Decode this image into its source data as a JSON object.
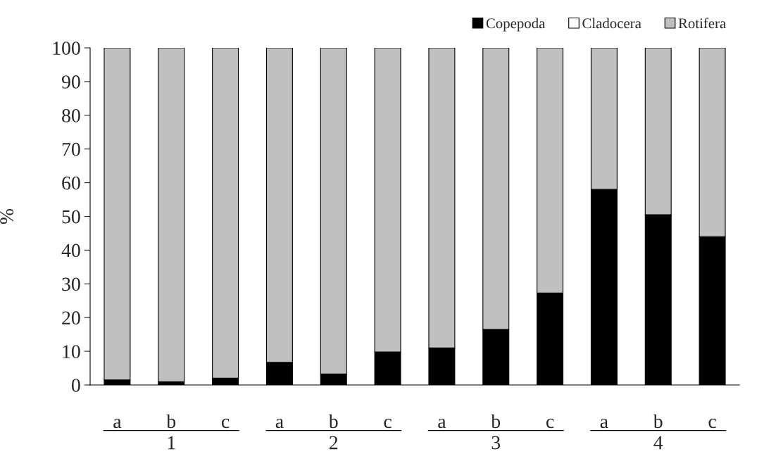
{
  "chart_data": {
    "type": "bar",
    "stacked": true,
    "ylabel": "%",
    "categories": [
      "a",
      "b",
      "c",
      "a",
      "b",
      "c",
      "a",
      "b",
      "c",
      "a",
      "b",
      "c"
    ],
    "series": [
      {
        "name": "Copepoda",
        "color": "#000000",
        "values": [
          1.5,
          1,
          2,
          6.7,
          3.3,
          9.8,
          11,
          16.5,
          27.3,
          58,
          50.5,
          44
        ]
      },
      {
        "name": "Cladocera",
        "color": "#ffffff",
        "values": [
          0,
          0,
          0,
          0,
          0,
          0,
          0,
          0,
          0,
          0,
          0,
          0
        ]
      },
      {
        "name": "Rotifera",
        "color": "#c0c0c0",
        "values": [
          98.5,
          99,
          98,
          93.3,
          96.7,
          90.2,
          89,
          83.5,
          72.7,
          42,
          49.5,
          56
        ]
      }
    ],
    "annotations": [
      "1",
      "2",
      "3",
      "4"
    ],
    "ylim": [
      0,
      100
    ],
    "yticks": [
      0,
      10,
      20,
      30,
      40,
      50,
      60,
      70,
      80,
      90,
      100
    ],
    "grid": false,
    "legend": "top right"
  }
}
